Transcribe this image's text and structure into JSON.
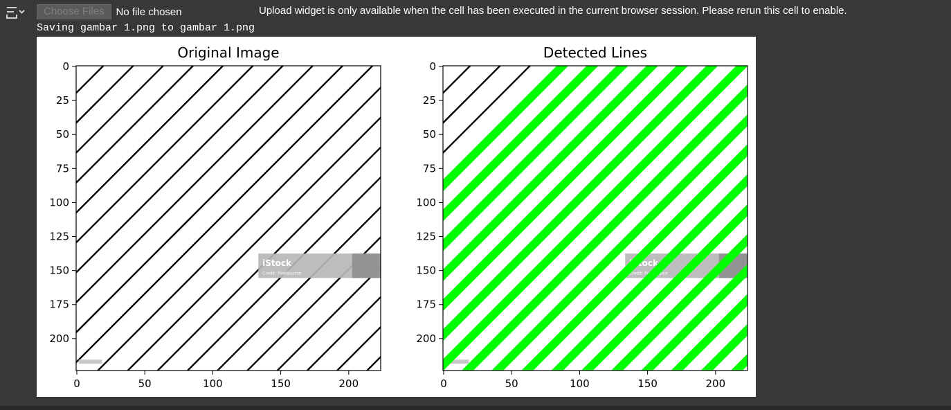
{
  "output_toolbar": {
    "icon": "output-settings-icon"
  },
  "file_upload": {
    "button_label": "Choose Files",
    "status_text": "No file chosen",
    "message": "Upload widget is only available when the cell has been executed in the current browser session. Please rerun this cell to enable."
  },
  "log_line": "Saving gambar 1.png to gambar 1.png",
  "colors": {
    "background": "#383838",
    "detected_line": "#00ff00",
    "stripe": "#000000"
  },
  "chart_data": [
    {
      "type": "image",
      "title": "Original Image",
      "xlim": [
        0,
        224
      ],
      "ylim": [
        224,
        0
      ],
      "x_ticks": [
        0,
        50,
        100,
        150,
        200
      ],
      "y_ticks": [
        0,
        25,
        50,
        75,
        100,
        125,
        150,
        175,
        200
      ],
      "watermark": {
        "text": "iStock",
        "subtext": "Credit: Pixelsource"
      }
    },
    {
      "type": "image",
      "title": "Detected Lines",
      "xlim": [
        0,
        224
      ],
      "ylim": [
        224,
        0
      ],
      "x_ticks": [
        0,
        50,
        100,
        150,
        200
      ],
      "y_ticks": [
        0,
        25,
        50,
        75,
        100,
        125,
        150,
        175,
        200
      ],
      "watermark": {
        "text": "iStock",
        "subtext": "Credit: Pixelsource"
      }
    }
  ]
}
